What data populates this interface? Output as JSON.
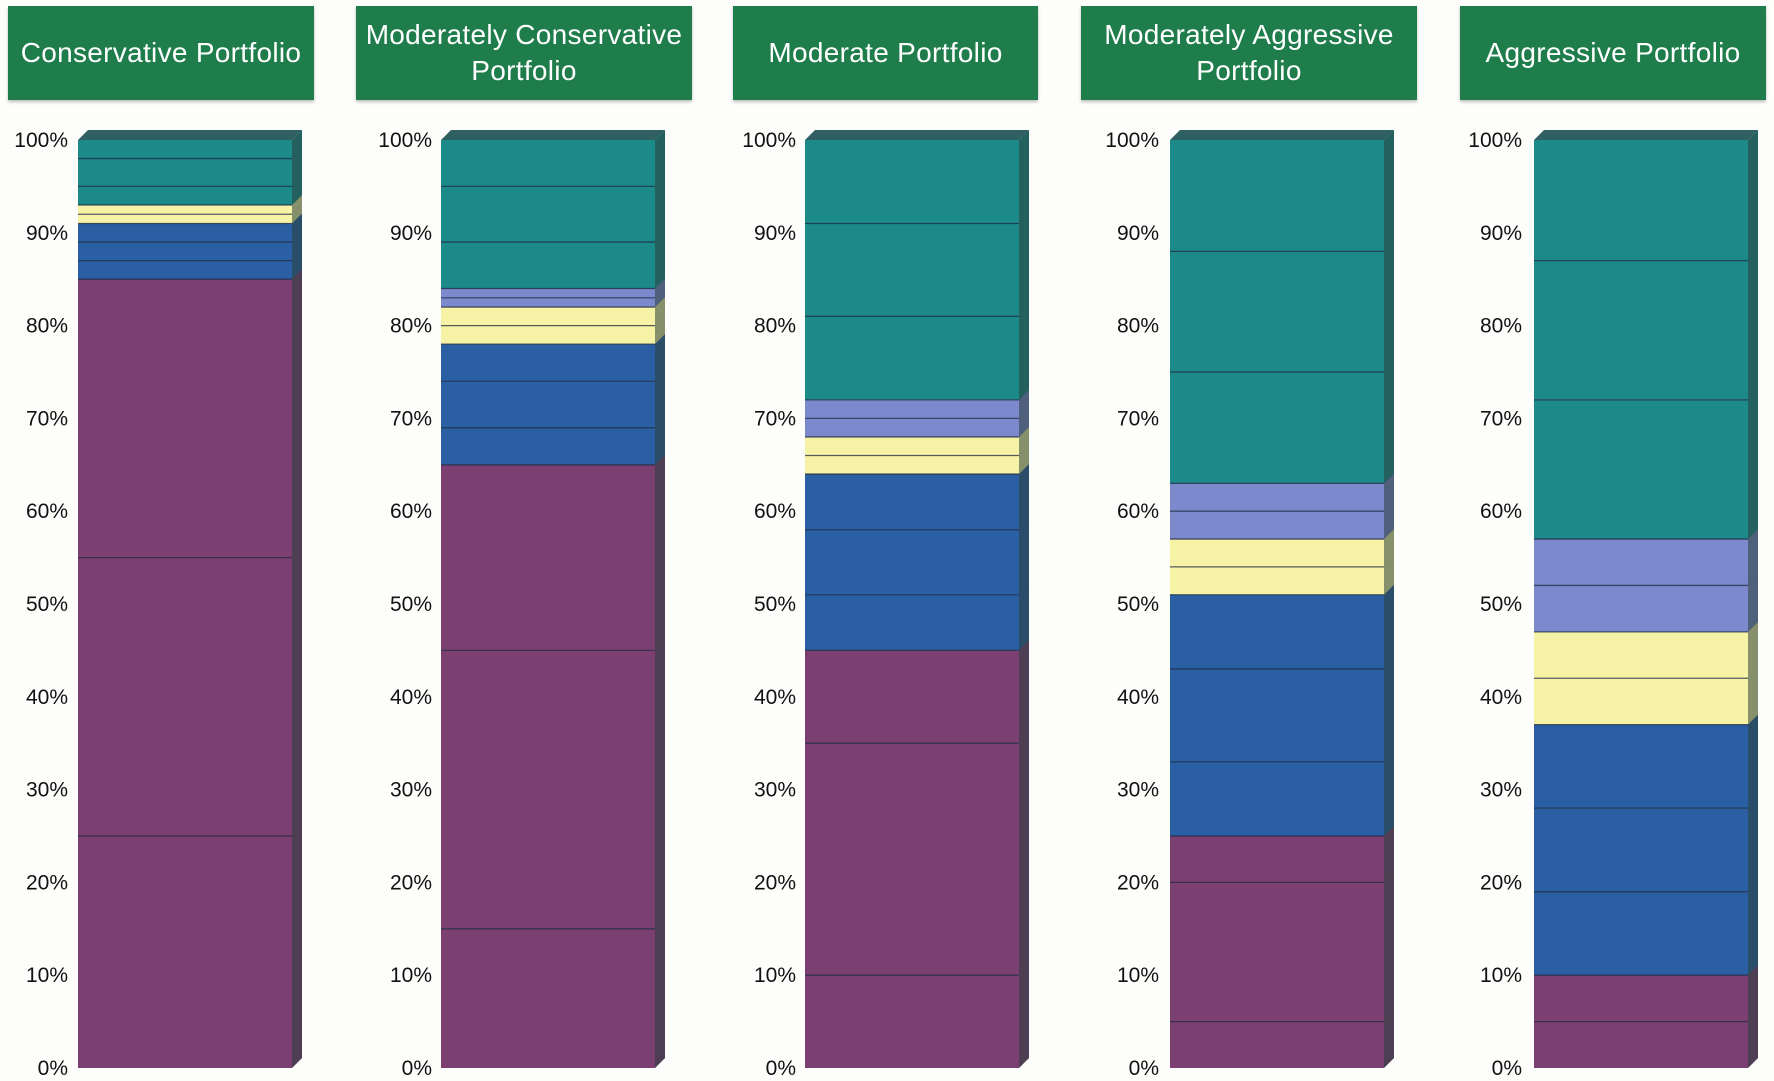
{
  "chart_data": [
    {
      "type": "bar",
      "stacked": true,
      "title": "Conservative Portfolio",
      "categories": [
        "Conservative Portfolio"
      ],
      "yticks": [
        "0%",
        "10%",
        "20%",
        "30%",
        "40%",
        "50%",
        "60%",
        "70%",
        "80%",
        "90%",
        "100%"
      ],
      "ylim": [
        0,
        100
      ],
      "series": [
        {
          "color": "#7b3f72",
          "values": [
            25
          ]
        },
        {
          "color": "#7b3f72",
          "values": [
            30
          ]
        },
        {
          "color": "#7b3f72",
          "values": [
            30
          ]
        },
        {
          "color": "#2a5fa4",
          "values": [
            2
          ]
        },
        {
          "color": "#2a5fa4",
          "values": [
            2
          ]
        },
        {
          "color": "#2a5fa4",
          "values": [
            2
          ]
        },
        {
          "color": "#f7f3a6",
          "values": [
            1
          ]
        },
        {
          "color": "#f7f3a6",
          "values": [
            1
          ]
        },
        {
          "color": "#1d8a8a",
          "values": [
            2
          ]
        },
        {
          "color": "#1d8a8a",
          "values": [
            3
          ]
        },
        {
          "color": "#1d8a8a",
          "values": [
            2
          ]
        }
      ]
    },
    {
      "type": "bar",
      "stacked": true,
      "title": "Moderately Conservative Portfolio",
      "categories": [
        "Moderately Conservative Portfolio"
      ],
      "yticks": [
        "0%",
        "10%",
        "20%",
        "30%",
        "40%",
        "50%",
        "60%",
        "70%",
        "80%",
        "90%",
        "100%"
      ],
      "ylim": [
        0,
        100
      ],
      "series": [
        {
          "color": "#7b3f72",
          "values": [
            15
          ]
        },
        {
          "color": "#7b3f72",
          "values": [
            30
          ]
        },
        {
          "color": "#7b3f72",
          "values": [
            20
          ]
        },
        {
          "color": "#2a5fa4",
          "values": [
            4
          ]
        },
        {
          "color": "#2a5fa4",
          "values": [
            5
          ]
        },
        {
          "color": "#2a5fa4",
          "values": [
            4
          ]
        },
        {
          "color": "#f7f3a6",
          "values": [
            2
          ]
        },
        {
          "color": "#f7f3a6",
          "values": [
            2
          ]
        },
        {
          "color": "#7c8acd",
          "values": [
            1
          ]
        },
        {
          "color": "#7c8acd",
          "values": [
            1
          ]
        },
        {
          "color": "#1d8a8a",
          "values": [
            5
          ]
        },
        {
          "color": "#1d8a8a",
          "values": [
            6
          ]
        },
        {
          "color": "#1d8a8a",
          "values": [
            5
          ]
        }
      ]
    },
    {
      "type": "bar",
      "stacked": true,
      "title": "Moderate Portfolio",
      "categories": [
        "Moderate Portfolio"
      ],
      "yticks": [
        "0%",
        "10%",
        "20%",
        "30%",
        "40%",
        "50%",
        "60%",
        "70%",
        "80%",
        "90%",
        "100%"
      ],
      "ylim": [
        0,
        100
      ],
      "series": [
        {
          "color": "#7b3f72",
          "values": [
            10
          ]
        },
        {
          "color": "#7b3f72",
          "values": [
            25
          ]
        },
        {
          "color": "#7b3f72",
          "values": [
            10
          ]
        },
        {
          "color": "#2a5fa4",
          "values": [
            6
          ]
        },
        {
          "color": "#2a5fa4",
          "values": [
            7
          ]
        },
        {
          "color": "#2a5fa4",
          "values": [
            6
          ]
        },
        {
          "color": "#f7f3a6",
          "values": [
            2
          ]
        },
        {
          "color": "#f7f3a6",
          "values": [
            2
          ]
        },
        {
          "color": "#7c8acd",
          "values": [
            2
          ]
        },
        {
          "color": "#7c8acd",
          "values": [
            2
          ]
        },
        {
          "color": "#1d8a8a",
          "values": [
            9
          ]
        },
        {
          "color": "#1d8a8a",
          "values": [
            10
          ]
        },
        {
          "color": "#1d8a8a",
          "values": [
            9
          ]
        }
      ]
    },
    {
      "type": "bar",
      "stacked": true,
      "title": "Moderately Aggressive Portfolio",
      "categories": [
        "Moderately Aggressive Portfolio"
      ],
      "yticks": [
        "0%",
        "10%",
        "20%",
        "30%",
        "40%",
        "50%",
        "60%",
        "70%",
        "80%",
        "90%",
        "100%"
      ],
      "ylim": [
        0,
        100
      ],
      "series": [
        {
          "color": "#7b3f72",
          "values": [
            5
          ]
        },
        {
          "color": "#7b3f72",
          "values": [
            15
          ]
        },
        {
          "color": "#7b3f72",
          "values": [
            5
          ]
        },
        {
          "color": "#2a5fa4",
          "values": [
            8
          ]
        },
        {
          "color": "#2a5fa4",
          "values": [
            10
          ]
        },
        {
          "color": "#2a5fa4",
          "values": [
            8
          ]
        },
        {
          "color": "#f7f3a6",
          "values": [
            3
          ]
        },
        {
          "color": "#f7f3a6",
          "values": [
            3
          ]
        },
        {
          "color": "#7c8acd",
          "values": [
            3
          ]
        },
        {
          "color": "#7c8acd",
          "values": [
            3
          ]
        },
        {
          "color": "#1d8a8a",
          "values": [
            12
          ]
        },
        {
          "color": "#1d8a8a",
          "values": [
            13
          ]
        },
        {
          "color": "#1d8a8a",
          "values": [
            12
          ]
        }
      ]
    },
    {
      "type": "bar",
      "stacked": true,
      "title": "Aggressive Portfolio",
      "categories": [
        "Aggressive Portfolio"
      ],
      "yticks": [
        "0%",
        "10%",
        "20%",
        "30%",
        "40%",
        "50%",
        "60%",
        "70%",
        "80%",
        "90%",
        "100%"
      ],
      "ylim": [
        0,
        100
      ],
      "series": [
        {
          "color": "#7b3f72",
          "values": [
            5
          ]
        },
        {
          "color": "#7b3f72",
          "values": [
            5
          ]
        },
        {
          "color": "#2a5fa4",
          "values": [
            9
          ]
        },
        {
          "color": "#2a5fa4",
          "values": [
            9
          ]
        },
        {
          "color": "#2a5fa4",
          "values": [
            9
          ]
        },
        {
          "color": "#f7f3a6",
          "values": [
            5
          ]
        },
        {
          "color": "#f7f3a6",
          "values": [
            5
          ]
        },
        {
          "color": "#7c8acd",
          "values": [
            5
          ]
        },
        {
          "color": "#7c8acd",
          "values": [
            5
          ]
        },
        {
          "color": "#1d8a8a",
          "values": [
            15
          ]
        },
        {
          "color": "#1d8a8a",
          "values": [
            15
          ]
        },
        {
          "color": "#1d8a8a",
          "values": [
            13
          ]
        }
      ]
    }
  ],
  "colors": {
    "header_bg": "#1f7d4c",
    "header_text": "#ffffff",
    "bar_side": "#2b3f3b",
    "separator": "#1e2a40"
  }
}
